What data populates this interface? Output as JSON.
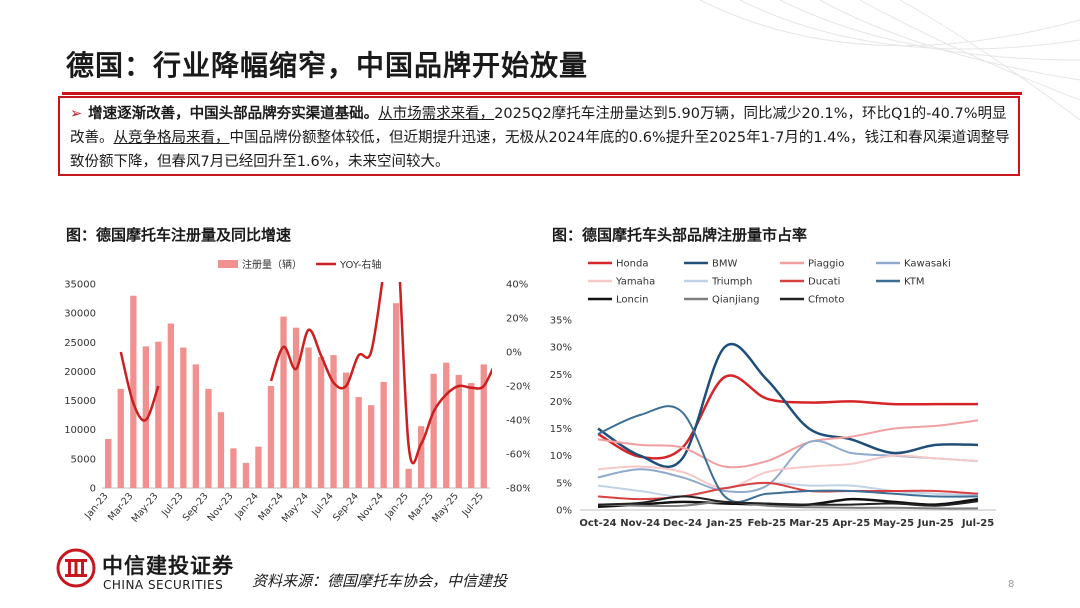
{
  "slide": {
    "title": "德国：行业降幅缩窄，中国品牌开始放量",
    "page_number": "8"
  },
  "summary": {
    "bullet": "➢",
    "bold_text": "增速逐渐改善，中国头部品牌夯实渠道基础。",
    "u1": "从市场需求来看，",
    "t1": "2025Q2摩托车注册量达到5.90万辆，同比减少20.1%，环比Q1的-40.7%明显改善。",
    "u2": "从竞争格局来看，",
    "t2": "中国品牌份额整体较低，但近期提升迅速，无极从2024年底的0.6%提升至2025年1-7月的1.4%，钱江和春风渠道调整导致份额下降，但春风7月已经回升至1.6%，未来空间较大。"
  },
  "footer": {
    "logo_cn": "中信建投证券",
    "logo_en": "CHINA SECURITIES",
    "source": "资料来源：德国摩托车协会，中信建投"
  },
  "colors": {
    "accent": "#c8161d",
    "bar": "#f0908f",
    "yoy_line": "#cc1f1f"
  },
  "chart_data": [
    {
      "type": "bar",
      "title": "图：德国摩托车注册量及同比增速",
      "legend": [
        "注册量（辆）",
        "YOY-右轴"
      ],
      "legend_position": "top",
      "x_tick_labels": [
        "Jan-23",
        "Mar-23",
        "May-23",
        "Jul-23",
        "Sep-23",
        "Nov-23",
        "Jan-24",
        "Mar-24",
        "May-24",
        "Jul-24",
        "Sep-24",
        "Nov-24",
        "Jan-25",
        "Mar-25",
        "May-25",
        "Jul-25"
      ],
      "categories": [
        "Jan-23",
        "Feb-23",
        "Mar-23",
        "Apr-23",
        "May-23",
        "Jun-23",
        "Jul-23",
        "Aug-23",
        "Sep-23",
        "Oct-23",
        "Nov-23",
        "Dec-23",
        "Jan-24",
        "Feb-24",
        "Mar-24",
        "Apr-24",
        "May-24",
        "Jun-24",
        "Jul-24",
        "Aug-24",
        "Sep-24",
        "Oct-24",
        "Nov-24",
        "Dec-24",
        "Jan-25",
        "Feb-25",
        "Mar-25",
        "Apr-25",
        "May-25",
        "Jun-25",
        "Jul-25"
      ],
      "y_left": {
        "min": 0,
        "max": 35000,
        "ticks": [
          0,
          5000,
          10000,
          15000,
          20000,
          25000,
          30000,
          35000
        ]
      },
      "y_right": {
        "min": -80,
        "max": 40,
        "ticks": [
          40,
          20,
          0,
          -20,
          -40,
          -60,
          -80
        ],
        "unit": "%"
      },
      "series": [
        {
          "name": "注册量（辆）",
          "kind": "bar",
          "values": [
            8400,
            17000,
            33000,
            24300,
            25100,
            28200,
            24100,
            21200,
            17000,
            13000,
            6800,
            4300,
            7100,
            17500,
            29400,
            27500,
            24100,
            22500,
            22800,
            19800,
            15600,
            14200,
            18200,
            31700,
            3300,
            10600,
            19600,
            21500,
            19400,
            18000,
            21200
          ]
        },
        {
          "name": "YOY-右轴",
          "kind": "line",
          "axis": "right",
          "segments": [
            {
              "start": 1,
              "values": [
                0,
                -30,
                -40,
                -20
              ]
            },
            {
              "start": 13,
              "values": [
                -17,
                3,
                -10,
                13,
                -2,
                -18,
                -20,
                -2,
                0,
                47
              ]
            },
            {
              "start": 22,
              "values": [
                110,
                80,
                -55,
                -54,
                -35,
                -25,
                -20,
                -21,
                -20,
                -5
              ]
            }
          ]
        }
      ]
    },
    {
      "type": "line",
      "title": "图：德国摩托车头部品牌注册量市占率",
      "categories": [
        "Oct-24",
        "Nov-24",
        "Dec-24",
        "Jan-25",
        "Feb-25",
        "Mar-25",
        "Apr-25",
        "May-25",
        "Jun-25",
        "Jul-25"
      ],
      "y_unit": "%",
      "ylim": [
        0,
        35
      ],
      "y_ticks": [
        0,
        5,
        10,
        15,
        20,
        25,
        30,
        35
      ],
      "legend_position": "top",
      "series": [
        {
          "name": "Honda",
          "color": "#d62428",
          "width": 2.5,
          "values": [
            14.0,
            9.8,
            11.5,
            24.5,
            20.5,
            19.8,
            20.0,
            19.5,
            19.5,
            19.5
          ]
        },
        {
          "name": "BMW",
          "color": "#1f4e79",
          "width": 2.5,
          "values": [
            15.0,
            10.0,
            9.5,
            30.0,
            24.0,
            15.0,
            13.0,
            10.5,
            12.0,
            12.0
          ]
        },
        {
          "name": "Piaggio",
          "color": "#f0a0a0",
          "width": 2,
          "values": [
            13.0,
            12.0,
            11.5,
            8.0,
            9.0,
            12.5,
            13.5,
            15.0,
            15.5,
            16.5
          ]
        },
        {
          "name": "Kawasaki",
          "color": "#8faacc",
          "width": 2,
          "values": [
            6.0,
            7.5,
            6.0,
            3.5,
            4.5,
            12.5,
            10.5,
            10.0,
            9.5,
            9.0
          ]
        },
        {
          "name": "Yamaha",
          "color": "#f6c8c8",
          "width": 2,
          "values": [
            7.5,
            8.0,
            7.0,
            4.0,
            7.0,
            8.0,
            8.5,
            10.0,
            9.5,
            9.0
          ]
        },
        {
          "name": "Triumph",
          "color": "#c0d2e6",
          "width": 2,
          "values": [
            4.5,
            3.5,
            2.5,
            4.0,
            5.0,
            4.5,
            4.5,
            3.5,
            3.0,
            2.8
          ]
        },
        {
          "name": "Ducati",
          "color": "#d94040",
          "width": 2,
          "values": [
            2.5,
            2.0,
            2.5,
            4.0,
            5.0,
            3.5,
            3.5,
            3.5,
            3.5,
            3.0
          ]
        },
        {
          "name": "KTM",
          "color": "#3d6e96",
          "width": 2,
          "values": [
            14.0,
            17.5,
            18.0,
            2.5,
            3.0,
            3.5,
            3.5,
            3.0,
            2.5,
            2.5
          ]
        },
        {
          "name": "Loncin",
          "color": "#111111",
          "width": 2.5,
          "values": [
            0.6,
            1.0,
            1.5,
            1.2,
            1.0,
            1.0,
            2.0,
            1.5,
            1.0,
            2.0
          ]
        },
        {
          "name": "Qianjiang",
          "color": "#808080",
          "width": 2,
          "values": [
            1.0,
            0.8,
            0.8,
            1.5,
            0.8,
            0.5,
            0.4,
            0.4,
            0.3,
            0.3
          ]
        },
        {
          "name": "Cfmoto",
          "color": "#222222",
          "width": 2,
          "values": [
            1.0,
            1.3,
            2.5,
            1.5,
            1.2,
            1.0,
            1.0,
            1.2,
            0.8,
            1.6
          ]
        }
      ]
    }
  ]
}
